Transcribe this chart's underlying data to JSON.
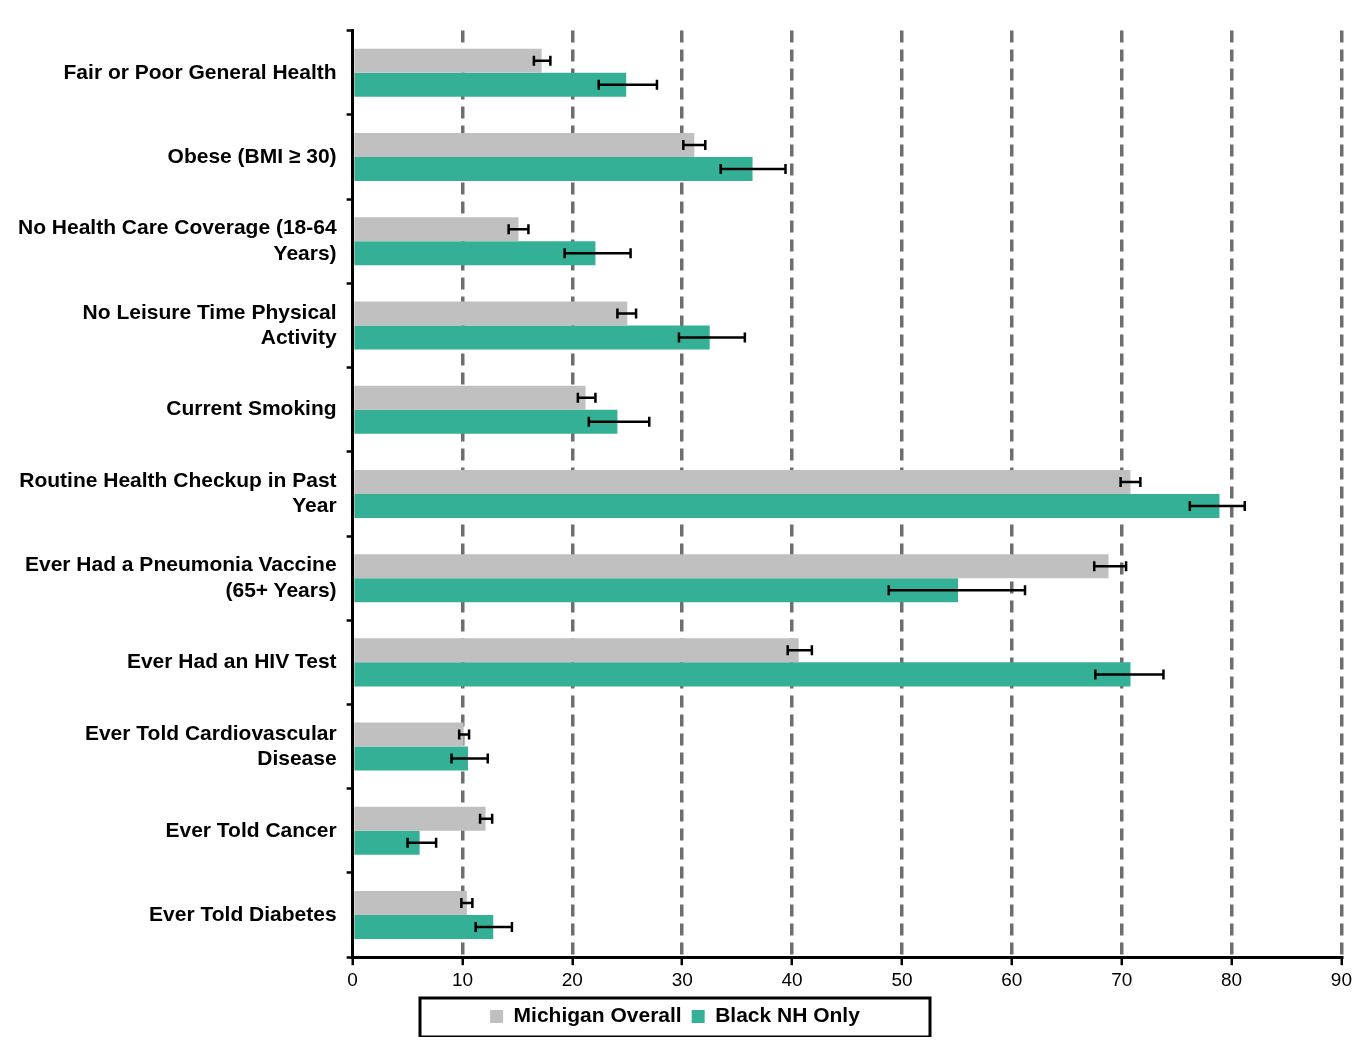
{
  "chart_data": {
    "type": "bar",
    "orientation": "horizontal",
    "categories": [
      "Fair or Poor General Health",
      "Obese (BMI ≥ 30)",
      "No Health Care Coverage (18-64 Years)",
      "No Leisure Time Physical Activity",
      "Current Smoking",
      "Routine Health Checkup in Past Year",
      "Ever Had a Pneumonia Vaccine (65+ Years)",
      "Ever Had an HIV Test",
      "Ever Told Cardiovascular Disease",
      "Ever Told Cancer",
      "Ever Told Diabetes"
    ],
    "series": [
      {
        "name": "Michigan Overall",
        "color": "#c0c0c0",
        "values": [
          17.2,
          31.1,
          15.1,
          25.0,
          21.2,
          70.8,
          68.8,
          40.6,
          10.1,
          12.1,
          10.4
        ],
        "errors": [
          [
            16.5,
            18.0
          ],
          [
            30.1,
            32.1
          ],
          [
            14.2,
            16.0
          ],
          [
            24.1,
            25.8
          ],
          [
            20.5,
            22.1
          ],
          [
            69.9,
            71.7
          ],
          [
            67.5,
            70.4
          ],
          [
            39.6,
            41.8
          ],
          [
            9.7,
            10.6
          ],
          [
            11.6,
            12.7
          ],
          [
            9.9,
            10.9
          ]
        ]
      },
      {
        "name": "Black NH Only",
        "color": "#33b095",
        "values": [
          24.9,
          36.4,
          22.1,
          32.5,
          24.1,
          78.9,
          55.1,
          70.8,
          10.5,
          6.1,
          12.8
        ],
        "errors": [
          [
            22.4,
            27.7
          ],
          [
            33.5,
            39.4
          ],
          [
            19.3,
            25.3
          ],
          [
            29.7,
            35.7
          ],
          [
            21.5,
            27.0
          ],
          [
            76.2,
            81.2
          ],
          [
            48.8,
            61.2
          ],
          [
            67.6,
            73.8
          ],
          [
            9.0,
            12.3
          ],
          [
            5.0,
            7.6
          ],
          [
            11.2,
            14.5
          ]
        ]
      }
    ],
    "xlim": [
      0,
      90
    ],
    "xticks": [
      0,
      10,
      20,
      30,
      40,
      50,
      60,
      70,
      80,
      90
    ],
    "grid": "x",
    "legend": "bottom"
  }
}
